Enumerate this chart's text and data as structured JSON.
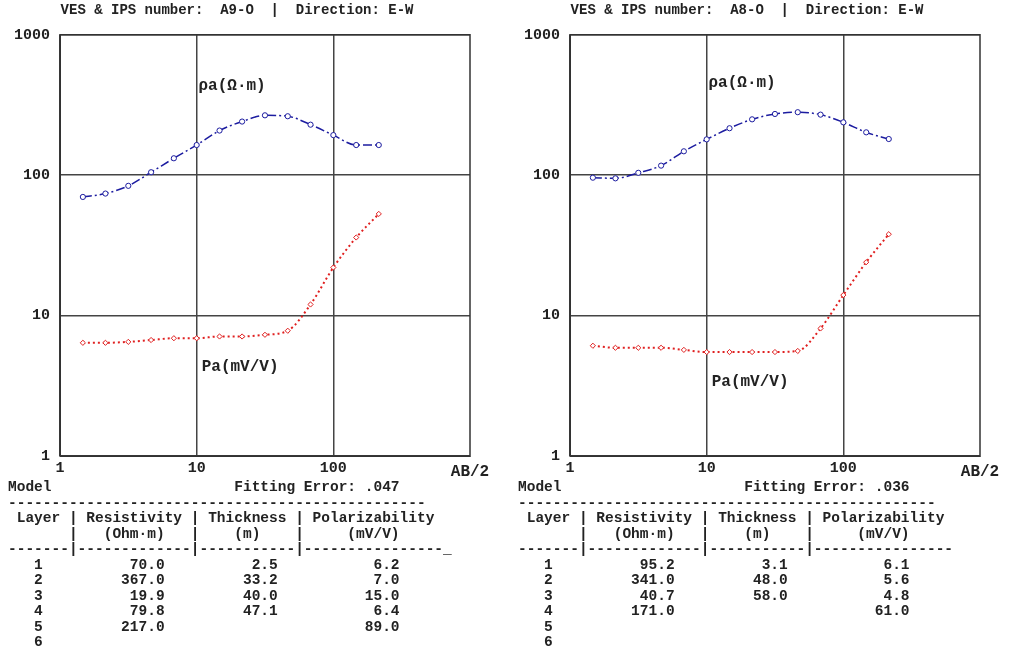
{
  "chart_data": [
    {
      "type": "line",
      "title": "VES & IPS number:  A9-O  |  Direction: E-W",
      "xlabel": "AB/2",
      "x": [
        1.47,
        2.15,
        3.16,
        4.64,
        6.81,
        10,
        14.7,
        21.5,
        31.6,
        46.4,
        68.1,
        100,
        147,
        215
      ],
      "xlim": [
        1,
        1000
      ],
      "ylim": [
        1,
        1000
      ],
      "xticks": [
        1,
        10,
        100
      ],
      "yticks": [
        1,
        10,
        100,
        1000
      ],
      "log": "xy",
      "grid": true,
      "legend": false,
      "series": [
        {
          "name": "ρa(Ω·m)",
          "color": "#1c1ca0",
          "marker": "circle",
          "line_style": "dashed",
          "values": [
            70,
            74,
            84,
            105,
            132,
            164,
            208,
            241,
            267,
            263,
            229,
            193,
            164,
            164
          ]
        },
        {
          "name": "Pa(mV/V)",
          "color": "#e02020",
          "marker": "diamond",
          "line_style": "dotted",
          "values": [
            6.4,
            6.4,
            6.5,
            6.7,
            6.9,
            6.9,
            7.1,
            7.1,
            7.3,
            7.8,
            12,
            22,
            36,
            53
          ]
        }
      ],
      "annotations": [
        "Model                     Fitting Error: .047",
        "------------------------------------------------",
        " Layer | Resistivity | Thickness | Polarizability",
        "       |   (Ohm·m)   |    (m)    |     (mV/V)",
        "-------|-------------|-----------|----------------_",
        "   1          70.0          2.5           6.2",
        "   2         367.0         33.2           7.0",
        "   3          19.9         40.0          15.0",
        "   4          79.8         47.1           6.4",
        "   5         217.0                       89.0",
        "   6"
      ]
    },
    {
      "type": "line",
      "title": "VES & IPS number:  A8-O  |  Direction: E-W",
      "xlabel": "AB/2",
      "x": [
        1.47,
        2.15,
        3.16,
        4.64,
        6.81,
        10,
        14.7,
        21.5,
        31.6,
        46.4,
        68.1,
        100,
        147,
        215
      ],
      "xlim": [
        1,
        1000
      ],
      "ylim": [
        1,
        1000
      ],
      "xticks": [
        1,
        10,
        100
      ],
      "yticks": [
        1,
        10,
        100,
        1000
      ],
      "log": "xy",
      "grid": true,
      "legend": false,
      "series": [
        {
          "name": "ρa(Ω·m)",
          "color": "#1c1ca0",
          "marker": "circle",
          "line_style": "dashed",
          "values": [
            96,
            95,
            104,
            117,
            148,
            180,
            216,
            250,
            273,
            281,
            270,
            238,
            202,
            181
          ]
        },
        {
          "name": "Pa(mV/V)",
          "color": "#e02020",
          "marker": "diamond",
          "line_style": "dotted",
          "values": [
            6.1,
            5.9,
            5.9,
            5.9,
            5.7,
            5.5,
            5.5,
            5.5,
            5.5,
            5.6,
            8.1,
            14,
            24,
            38
          ]
        }
      ],
      "annotations": [
        "Model                     Fitting Error: .036",
        "------------------------------------------------",
        " Layer | Resistivity | Thickness | Polarizability",
        "       |   (Ohm·m)   |    (m)    |     (mV/V)",
        "-------|-------------|-----------|----------------",
        "   1          95.2          3.1           6.1",
        "   2         341.0         48.0           5.6",
        "   3          40.7         58.0           4.8",
        "   4         171.0                       61.0",
        "   5",
        "   6"
      ]
    }
  ]
}
